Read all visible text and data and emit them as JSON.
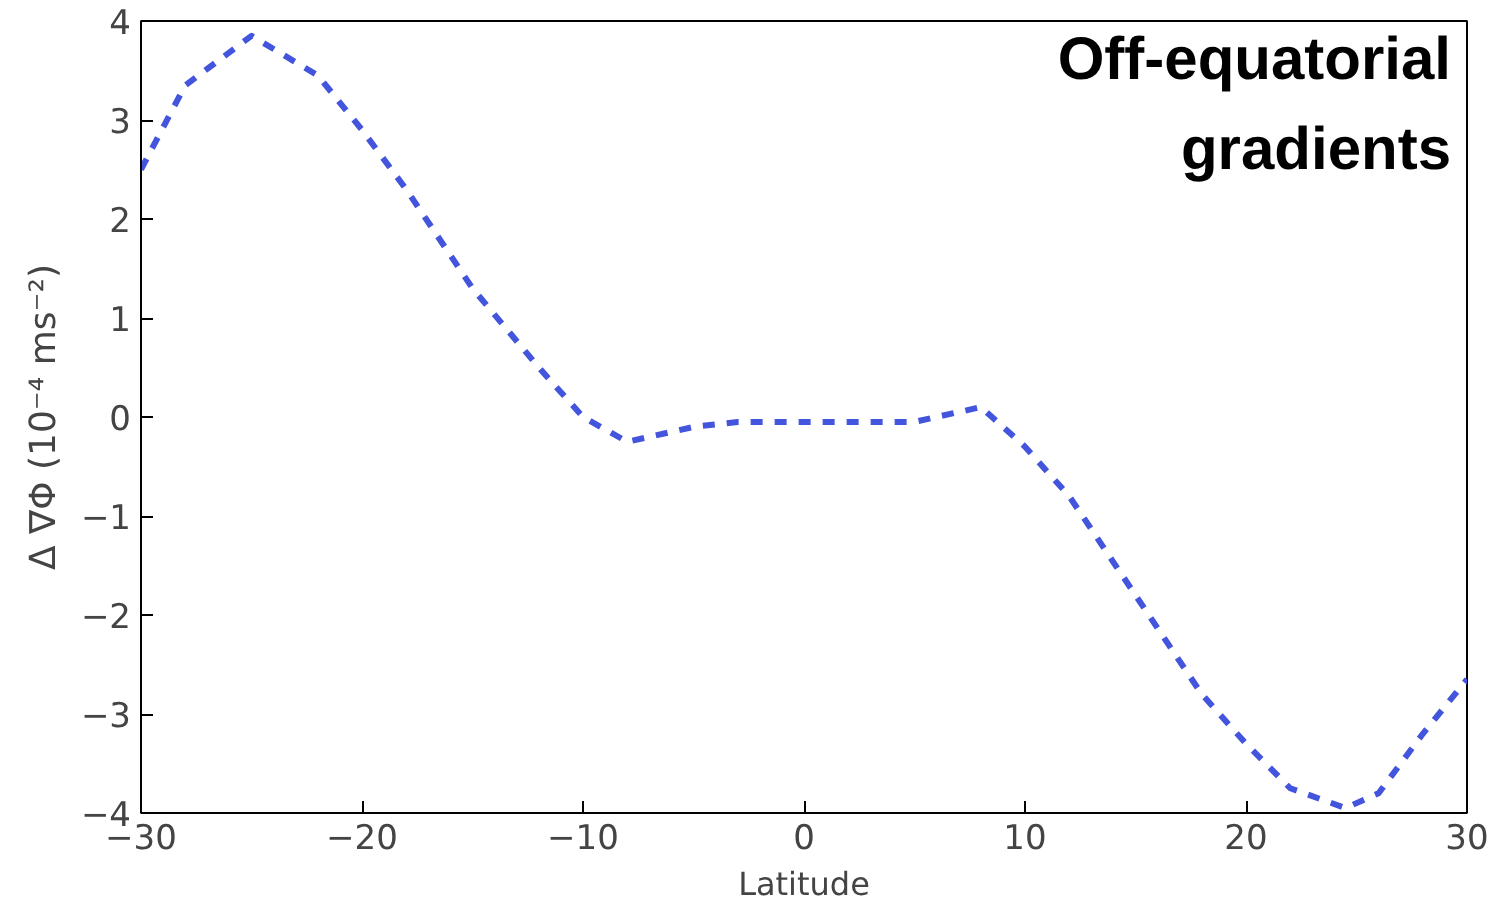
{
  "chart_data": {
    "type": "line",
    "xlabel": "Latitude",
    "ylabel": "Δ ∇Φ (10⁻⁴ ms⁻²)",
    "annotations": [
      "Off-equatorial gradients"
    ],
    "series": [
      {
        "color": "#4455dd",
        "line_style": "dashed",
        "marker": "none",
        "x": [
          -30,
          -28,
          -25,
          -22,
          -20,
          -18,
          -15,
          -12,
          -10,
          -8,
          -7,
          -5,
          -3,
          0,
          3,
          5,
          7,
          8,
          10,
          12,
          15,
          18,
          20,
          22,
          24.5,
          26,
          28,
          30
        ],
        "values": [
          2.5,
          3.35,
          3.85,
          3.45,
          2.9,
          2.3,
          1.3,
          0.5,
          0.0,
          -0.25,
          -0.2,
          -0.1,
          -0.05,
          -0.05,
          -0.05,
          -0.05,
          0.05,
          0.1,
          -0.3,
          -0.8,
          -1.8,
          -2.8,
          -3.3,
          -3.75,
          -3.95,
          -3.8,
          -3.2,
          -2.65
        ]
      }
    ],
    "xlim": [
      -30,
      30
    ],
    "ylim": [
      -4,
      4
    ],
    "xticks": [
      {
        "value": -30,
        "label": "−30"
      },
      {
        "value": -20,
        "label": "−20"
      },
      {
        "value": -10,
        "label": "−10"
      },
      0,
      10,
      20,
      30
    ],
    "yticks": [
      {
        "value": -4,
        "label": "−4"
      },
      {
        "value": -3,
        "label": "−3"
      },
      {
        "value": -2,
        "label": "−2"
      },
      {
        "value": -1,
        "label": "−1"
      },
      0,
      1,
      2,
      3,
      4
    ],
    "grid": false
  }
}
